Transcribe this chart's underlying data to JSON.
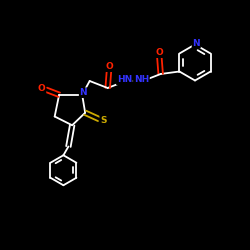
{
  "bg_color": "#000000",
  "bond_color": "#ffffff",
  "atom_colors": {
    "O": "#ff2200",
    "N": "#3333ff",
    "S": "#ccaa00",
    "C": "#ffffff",
    "H": "#ffffff"
  },
  "lw": 1.3,
  "fontsize": 6.5
}
